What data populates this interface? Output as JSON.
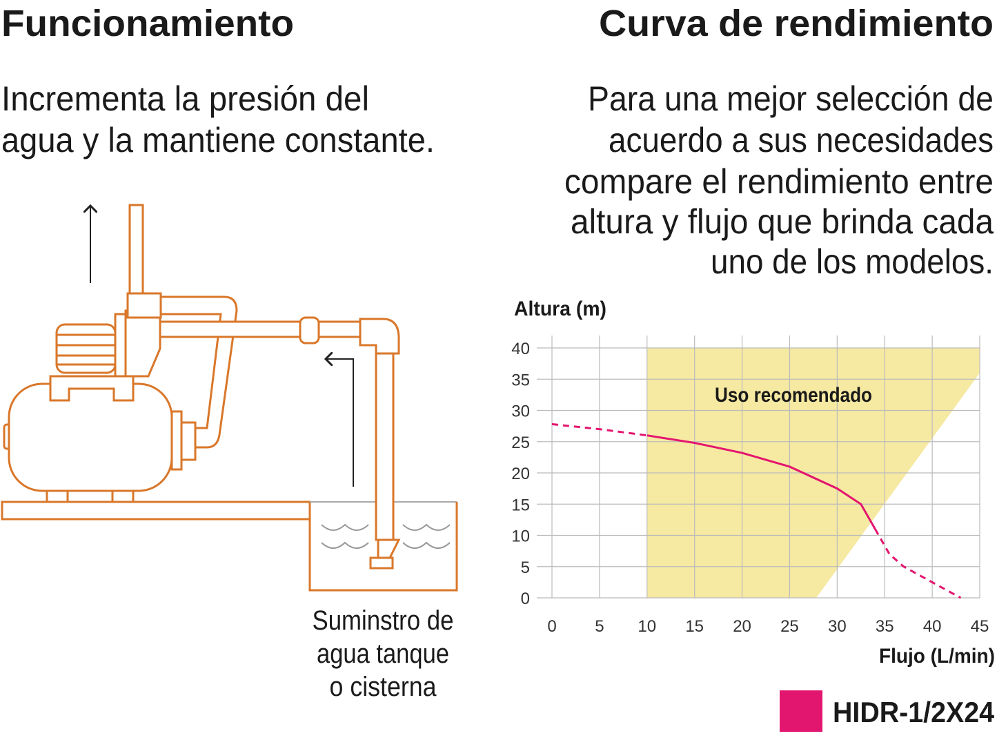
{
  "left": {
    "title": "Funcionamiento",
    "description": [
      "Incrementa la presión del",
      "agua y la mantiene constante."
    ],
    "supply_label": [
      "Suminstro de",
      "agua tanque",
      "o cisterna"
    ]
  },
  "right": {
    "title": "Curva de rendimiento",
    "description": [
      "Para una mejor selección de",
      "acuerdo a sus necesidades",
      "compare el rendimiento entre",
      "altura y flujo que brinda cada",
      "uno de los modelos."
    ]
  },
  "chart_data": {
    "type": "line",
    "y_label": "Altura (m)",
    "x_label": "Flujo (L/min)",
    "xlim": [
      0,
      45
    ],
    "ylim": [
      0,
      40
    ],
    "xticks": [
      0,
      5,
      10,
      15,
      20,
      25,
      30,
      35,
      40,
      45
    ],
    "yticks": [
      0,
      5,
      10,
      15,
      20,
      25,
      30,
      35,
      40
    ],
    "grid": true,
    "recommended_region": {
      "label": "Uso recomendado",
      "color": "#f6e9a2",
      "x": [
        10,
        10,
        45,
        45,
        27.8
      ],
      "y": [
        0,
        40,
        40,
        36,
        0
      ]
    },
    "series": [
      {
        "name": "HIDR-1/2X24",
        "color": "#e3166f",
        "x": [
          0,
          5,
          10,
          15,
          20,
          25,
          30,
          32.5,
          34,
          35.5,
          37,
          40,
          43
        ],
        "values": [
          27.8,
          27,
          26,
          24.8,
          23.2,
          21,
          17.5,
          15,
          11,
          7,
          5,
          2.5,
          0
        ]
      }
    ]
  }
}
